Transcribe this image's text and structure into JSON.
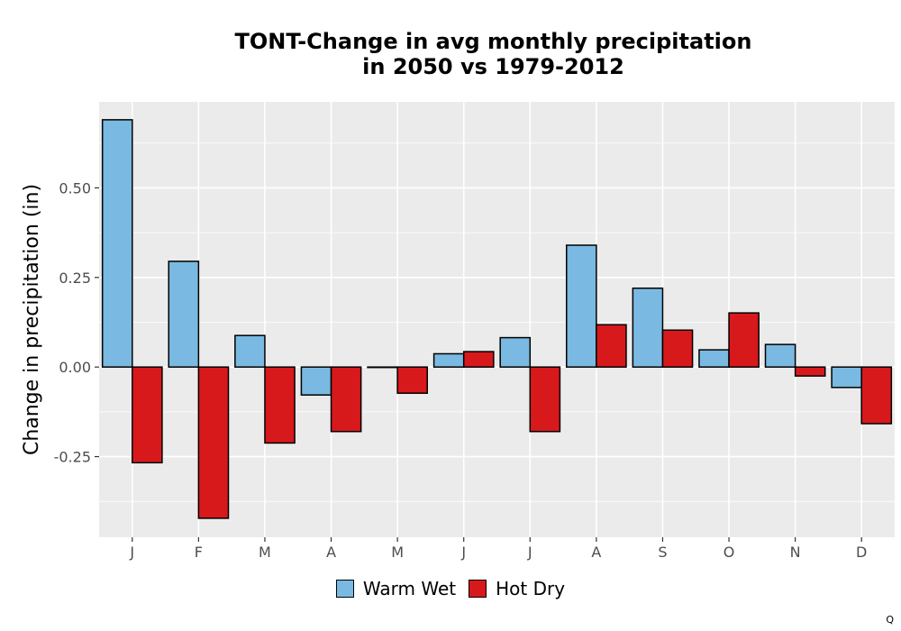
{
  "chart_data": {
    "type": "bar",
    "title_line1": "TONT-Change in avg monthly precipitation",
    "title_line2": "in 2050 vs 1979-2012",
    "xlabel": "",
    "ylabel": "Change in precipitation (in)",
    "categories": [
      "J",
      "F",
      "M",
      "A",
      "M",
      "J",
      "J",
      "A",
      "S",
      "O",
      "N",
      "D"
    ],
    "series": [
      {
        "name": "Warm Wet",
        "color": "#7ab9e1",
        "values": [
          0.69,
          0.295,
          0.088,
          -0.078,
          0.0,
          0.037,
          0.082,
          0.34,
          0.22,
          0.048,
          0.063,
          -0.057
        ]
      },
      {
        "name": "Hot Dry",
        "color": "#d7191c",
        "values": [
          -0.267,
          -0.422,
          -0.212,
          -0.18,
          -0.073,
          0.043,
          -0.18,
          0.118,
          0.103,
          0.151,
          -0.025,
          -0.158
        ]
      }
    ],
    "ylim": [
      -0.475,
      0.74
    ],
    "yticks": [
      -0.25,
      0.0,
      0.25,
      0.5
    ],
    "ytick_labels": [
      "-0.25",
      "0.00",
      "0.25",
      "0.50"
    ],
    "panel_background": "#ebebeb",
    "grid": true,
    "legend_position": "bottom"
  },
  "corner_mark": "Q"
}
